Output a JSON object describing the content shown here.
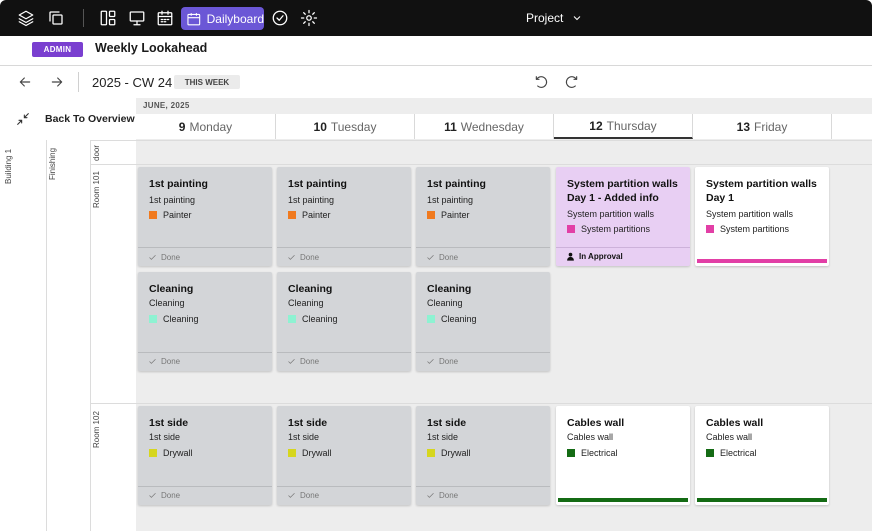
{
  "colors": {
    "topbar_bg": "#111111",
    "active_tab": "#6b57d6",
    "admin_badge": "#7a3fd0",
    "painter": "#f07a1f",
    "cleaning": "#8ef2d2",
    "drywall": "#d6d61e",
    "system_partitions": "#e23fa6",
    "electrical": "#146b14",
    "approval_card": "#e8cff3",
    "done_card": "#d3d5d8"
  },
  "topbar": {
    "icons": [
      "layers-icon",
      "copy-icon",
      "layout-icon",
      "presentation-icon",
      "calendar-icon",
      "check-circle-icon",
      "gear-icon"
    ],
    "active_tab_label": "Dailyboard",
    "project_label": "Project"
  },
  "header": {
    "badge": "ADMIN",
    "title": "Weekly Lookahead"
  },
  "week": {
    "label": "2025 - CW 24",
    "this_week": "THIS WEEK",
    "month": "JUNE, 2025"
  },
  "back_label": "Back To Overview",
  "days": [
    {
      "num": "9",
      "name": "Monday"
    },
    {
      "num": "10",
      "name": "Tuesday"
    },
    {
      "num": "11",
      "name": "Wednesday"
    },
    {
      "num": "12",
      "name": "Thursday",
      "today": true
    },
    {
      "num": "13",
      "name": "Friday"
    }
  ],
  "hierarchy": {
    "building": "Building 1",
    "phase": "Finishing",
    "rows": [
      "door",
      "Room 101",
      "Room 102"
    ]
  },
  "cards": [
    {
      "title": "1st painting",
      "subtitle": "1st painting",
      "trade": "Painter",
      "status": "Done"
    },
    {
      "title": "1st painting",
      "subtitle": "1st painting",
      "trade": "Painter",
      "status": "Done"
    },
    {
      "title": "1st painting",
      "subtitle": "1st painting",
      "trade": "Painter",
      "status": "Done"
    },
    {
      "title": "System partition walls Day 1 - Added info",
      "subtitle": "System partition walls",
      "trade": "System partitions",
      "status": "In Approval"
    },
    {
      "title": "System partition walls Day 1",
      "subtitle": "System partition walls",
      "trade": "System partitions",
      "status": ""
    },
    {
      "title": "Cleaning",
      "subtitle": "Cleaning",
      "trade": "Cleaning",
      "status": "Done"
    },
    {
      "title": "Cleaning",
      "subtitle": "Cleaning",
      "trade": "Cleaning",
      "status": "Done"
    },
    {
      "title": "Cleaning",
      "subtitle": "Cleaning",
      "trade": "Cleaning",
      "status": "Done"
    },
    {
      "title": "1st side",
      "subtitle": "1st side",
      "trade": "Drywall",
      "status": "Done"
    },
    {
      "title": "1st side",
      "subtitle": "1st side",
      "trade": "Drywall",
      "status": "Done"
    },
    {
      "title": "1st side",
      "subtitle": "1st side",
      "trade": "Drywall",
      "status": "Done"
    },
    {
      "title": "Cables wall",
      "subtitle": "Cables wall",
      "trade": "Electrical",
      "status": ""
    },
    {
      "title": "Cables wall",
      "subtitle": "Cables wall",
      "trade": "Electrical",
      "status": ""
    }
  ]
}
